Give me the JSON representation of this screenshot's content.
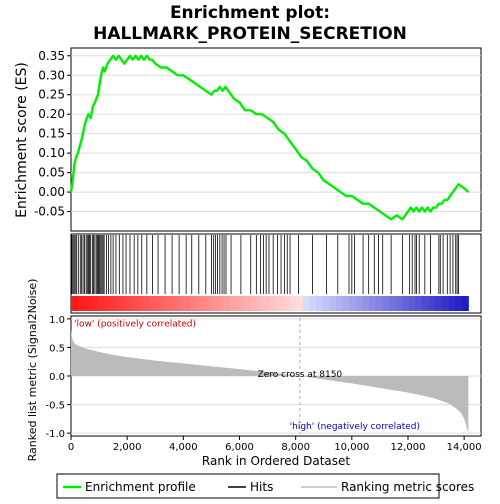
{
  "chart_data": {
    "type": "line",
    "title_lines": [
      "Enrichment plot:",
      "HALLMARK_PROTEIN_SECRETION"
    ],
    "es_panel": {
      "ylabel": "Enrichment score (ES)",
      "ylim": [
        -0.1,
        0.37
      ],
      "yticks": [
        -0.05,
        0.0,
        0.05,
        0.1,
        0.15,
        0.2,
        0.25,
        0.3,
        0.35
      ],
      "ytick_labels": [
        "-0.05",
        "0.00",
        "0.05",
        "0.10",
        "0.15",
        "0.20",
        "0.25",
        "0.30",
        "0.35"
      ],
      "series": [
        {
          "name": "Enrichment profile",
          "color": "#00ee00",
          "x": [
            0,
            60,
            120,
            180,
            250,
            320,
            400,
            480,
            560,
            620,
            700,
            780,
            850,
            900,
            960,
            1000,
            1050,
            1100,
            1150,
            1200,
            1300,
            1400,
            1500,
            1600,
            1700,
            1800,
            1900,
            2000,
            2100,
            2200,
            2300,
            2400,
            2500,
            2600,
            2700,
            2800,
            2900,
            3000,
            3200,
            3400,
            3600,
            3800,
            4000,
            4200,
            4400,
            4600,
            4800,
            5000,
            5100,
            5200,
            5300,
            5400,
            5500,
            5600,
            5800,
            6000,
            6200,
            6400,
            6600,
            6800,
            7000,
            7200,
            7400,
            7600,
            7800,
            8000,
            8200,
            8400,
            8600,
            8800,
            9000,
            9200,
            9400,
            9600,
            9800,
            10000,
            10200,
            10400,
            10600,
            10800,
            11000,
            11200,
            11400,
            11600,
            11800,
            11900,
            12000,
            12100,
            12200,
            12300,
            12400,
            12500,
            12600,
            12700,
            12800,
            12900,
            13000,
            13100,
            13200,
            13300,
            13400,
            13500,
            13600,
            13700,
            13800,
            14000,
            14150
          ],
          "y": [
            0.0,
            0.03,
            0.07,
            0.09,
            0.1,
            0.12,
            0.14,
            0.17,
            0.19,
            0.2,
            0.19,
            0.22,
            0.23,
            0.24,
            0.25,
            0.27,
            0.29,
            0.31,
            0.32,
            0.31,
            0.33,
            0.34,
            0.35,
            0.34,
            0.35,
            0.34,
            0.33,
            0.34,
            0.35,
            0.34,
            0.35,
            0.34,
            0.35,
            0.34,
            0.35,
            0.34,
            0.34,
            0.33,
            0.32,
            0.32,
            0.31,
            0.3,
            0.3,
            0.29,
            0.28,
            0.27,
            0.26,
            0.25,
            0.26,
            0.26,
            0.27,
            0.26,
            0.27,
            0.26,
            0.24,
            0.23,
            0.21,
            0.21,
            0.2,
            0.2,
            0.19,
            0.18,
            0.16,
            0.15,
            0.13,
            0.11,
            0.09,
            0.08,
            0.06,
            0.05,
            0.03,
            0.02,
            0.01,
            0.0,
            -0.01,
            -0.01,
            -0.02,
            -0.03,
            -0.03,
            -0.04,
            -0.05,
            -0.06,
            -0.07,
            -0.06,
            -0.07,
            -0.06,
            -0.05,
            -0.04,
            -0.05,
            -0.04,
            -0.05,
            -0.04,
            -0.05,
            -0.04,
            -0.05,
            -0.04,
            -0.04,
            -0.03,
            -0.03,
            -0.02,
            -0.02,
            -0.01,
            0.0,
            0.01,
            0.02,
            0.01,
            0.0
          ]
        }
      ]
    },
    "hits_panel": {
      "hit_ranks": [
        30,
        70,
        110,
        150,
        200,
        260,
        330,
        380,
        430,
        480,
        540,
        580,
        620,
        660,
        700,
        760,
        800,
        850,
        900,
        940,
        980,
        1020,
        1060,
        1100,
        1140,
        1180,
        1260,
        1340,
        1420,
        1500,
        1600,
        1720,
        1850,
        1960,
        2100,
        2250,
        2380,
        2520,
        2700,
        2900,
        3100,
        3350,
        3600,
        3850,
        4100,
        4300,
        4550,
        4800,
        5000,
        5080,
        5150,
        5220,
        5300,
        5380,
        5450,
        5520,
        5700,
        6050,
        6400,
        6600,
        6750,
        6850,
        6950,
        7050,
        7200,
        7350,
        7480,
        7600,
        7700,
        7800,
        8100,
        8600,
        9100,
        9500,
        9900,
        10000,
        10100,
        10400,
        10600,
        10800,
        10950,
        11100,
        11400,
        11800,
        12050,
        12150,
        12250,
        12300,
        12400,
        12600,
        12800,
        13100,
        13150,
        13250,
        13400,
        13500,
        13600,
        13700,
        13750,
        13800
      ]
    },
    "metric_panel": {
      "ylabel": "Ranked list metric (Signal2Noise)",
      "ylim": [
        -1.05,
        1.05
      ],
      "yticks": [
        -1.0,
        -0.5,
        0.0,
        0.5,
        1.0
      ],
      "ytick_labels": [
        "-1.0",
        "-0.5",
        "0.0",
        "0.5",
        "1.0"
      ],
      "x": [
        0,
        20,
        60,
        150,
        300,
        600,
        1000,
        1500,
        2000,
        3000,
        4000,
        5000,
        6000,
        7000,
        8150,
        9000,
        10000,
        11000,
        12000,
        12500,
        13000,
        13400,
        13700,
        13900,
        14000,
        14080,
        14150
      ],
      "values": [
        0.82,
        0.72,
        0.62,
        0.56,
        0.52,
        0.47,
        0.42,
        0.37,
        0.33,
        0.27,
        0.22,
        0.17,
        0.12,
        0.07,
        0.0,
        -0.06,
        -0.13,
        -0.21,
        -0.29,
        -0.34,
        -0.4,
        -0.47,
        -0.56,
        -0.65,
        -0.75,
        -0.88,
        -1.0
      ],
      "zero_cross_label": "Zero cross at 8150",
      "zero_cross": 8150,
      "low_label": "'low' (positively correlated)",
      "high_label": "'high' (negatively correlated)"
    },
    "xaxis": {
      "label": "Rank in Ordered Dataset",
      "xlim": [
        0,
        14600
      ],
      "ticks": [
        0,
        2000,
        4000,
        6000,
        8000,
        10000,
        12000,
        14000
      ],
      "tick_labels": [
        "0",
        "2,000",
        "4,000",
        "6,000",
        "8,000",
        "10,000",
        "12,000",
        "14,000"
      ]
    },
    "legend": {
      "placement": "bottom",
      "items": [
        {
          "label": "Enrichment profile",
          "color": "#00ee00",
          "kind": "line"
        },
        {
          "label": "Hits",
          "color": "#000000",
          "kind": "line"
        },
        {
          "label": "Ranking metric scores",
          "color": "#bbbbbb",
          "kind": "line"
        }
      ]
    }
  }
}
